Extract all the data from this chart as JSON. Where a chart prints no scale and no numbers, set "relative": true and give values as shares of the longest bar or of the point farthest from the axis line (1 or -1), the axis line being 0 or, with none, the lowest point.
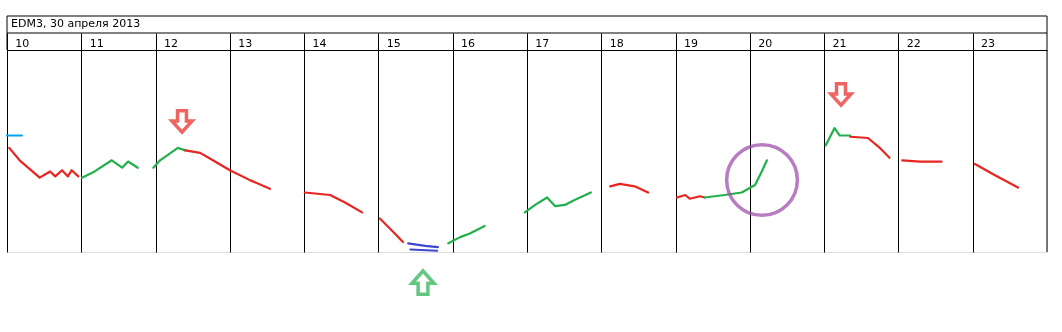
{
  "chart_data": {
    "type": "line",
    "title": "EDM3, 30 апреля 2013",
    "relative": true,
    "grid": "x",
    "line_style": "solid",
    "xlim": [
      10,
      24
    ],
    "xticks": [
      {
        "value": 10,
        "label": null
      },
      {
        "value": 10.2,
        "label": "10"
      },
      {
        "value": 11,
        "label": null
      },
      {
        "value": 11.2,
        "label": "11"
      },
      {
        "value": 12,
        "label": null
      },
      {
        "value": 12.2,
        "label": "12"
      },
      {
        "value": 13,
        "label": null
      },
      {
        "value": 13.2,
        "label": "13"
      },
      {
        "value": 14,
        "label": null
      },
      {
        "value": 14.2,
        "label": "14"
      },
      {
        "value": 15,
        "label": null
      },
      {
        "value": 15.2,
        "label": "15"
      },
      {
        "value": 16,
        "label": null
      },
      {
        "value": 16.2,
        "label": "16"
      },
      {
        "value": 17,
        "label": null
      },
      {
        "value": 17.2,
        "label": "17"
      },
      {
        "value": 18,
        "label": null
      },
      {
        "value": 18.2,
        "label": "18"
      },
      {
        "value": 19,
        "label": null
      },
      {
        "value": 19.2,
        "label": "19"
      },
      {
        "value": 20,
        "label": null
      },
      {
        "value": 20.2,
        "label": "20"
      },
      {
        "value": 21,
        "label": null
      },
      {
        "value": 21.2,
        "label": "21"
      },
      {
        "value": 22,
        "label": null
      },
      {
        "value": 22.2,
        "label": "22"
      },
      {
        "value": 23,
        "label": null
      },
      {
        "value": 23.2,
        "label": "23"
      }
    ],
    "series": [
      {
        "color": "#00a2e8",
        "x": [
          10.0,
          10.2
        ],
        "values": [
          0.94,
          0.94
        ]
      },
      {
        "color": "#e8251f",
        "x": [
          10.03,
          10.17,
          10.44,
          10.58,
          10.65,
          10.74,
          10.82,
          10.87,
          10.96
        ],
        "values": [
          0.84,
          0.74,
          0.6,
          0.65,
          0.61,
          0.66,
          0.61,
          0.66,
          0.61
        ]
      },
      {
        "color": "#22b04b",
        "x": [
          11.01,
          11.18,
          11.41,
          11.55,
          11.63,
          11.76
        ],
        "values": [
          0.6,
          0.65,
          0.74,
          0.68,
          0.73,
          0.68
        ]
      },
      {
        "color": "#22b04b",
        "x": [
          11.97,
          12.06,
          12.3,
          12.4
        ],
        "values": [
          0.68,
          0.74,
          0.84,
          0.82
        ]
      },
      {
        "color": "#e8251f",
        "x": [
          12.4,
          12.6,
          12.8,
          13.0,
          13.27,
          13.54
        ],
        "values": [
          0.82,
          0.8,
          0.73,
          0.66,
          0.58,
          0.51
        ]
      },
      {
        "color": "#e8251f",
        "x": [
          14.01,
          14.35,
          14.55,
          14.78
        ],
        "values": [
          0.48,
          0.46,
          0.4,
          0.32
        ]
      },
      {
        "color": "#e8251f",
        "x": [
          15.02,
          15.22,
          15.33
        ],
        "values": [
          0.27,
          0.15,
          0.08
        ]
      },
      {
        "color": "#3f48cc",
        "x": [
          15.4,
          15.63,
          15.8
        ],
        "values": [
          0.07,
          0.05,
          0.04
        ]
      },
      {
        "color": "#3f48cc",
        "x": [
          15.43,
          15.79
        ],
        "values": [
          0.02,
          0.01
        ]
      },
      {
        "color": "#22b04b",
        "x": [
          15.94,
          16.1,
          16.23,
          16.43
        ],
        "values": [
          0.07,
          0.12,
          0.15,
          0.21
        ]
      },
      {
        "color": "#22b04b",
        "x": [
          16.97,
          17.11,
          17.27,
          17.38,
          17.51,
          17.64,
          17.86
        ],
        "values": [
          0.32,
          0.38,
          0.44,
          0.37,
          0.38,
          0.42,
          0.48
        ]
      },
      {
        "color": "#e8251f",
        "x": [
          18.12,
          18.25,
          18.45,
          18.63
        ],
        "values": [
          0.53,
          0.55,
          0.53,
          0.48
        ]
      },
      {
        "color": "#e8251f",
        "x": [
          19.02,
          19.13,
          19.19,
          19.33,
          19.39
        ],
        "values": [
          0.44,
          0.46,
          0.43,
          0.45,
          0.44
        ]
      },
      {
        "color": "#22b04b",
        "x": [
          19.39,
          19.66,
          19.89,
          20.07,
          20.16,
          20.23
        ],
        "values": [
          0.44,
          0.46,
          0.48,
          0.54,
          0.65,
          0.74
        ]
      },
      {
        "color": "#22b04b",
        "x": [
          21.02,
          21.14,
          21.21,
          21.35
        ],
        "values": [
          0.86,
          1,
          0.94,
          0.94
        ]
      },
      {
        "color": "#e8251f",
        "x": [
          21.35,
          21.59,
          21.75,
          21.88
        ],
        "values": [
          0.93,
          0.92,
          0.84,
          0.76
        ]
      },
      {
        "color": "#e8251f",
        "x": [
          22.05,
          22.29,
          22.58
        ],
        "values": [
          0.74,
          0.73,
          0.73
        ]
      },
      {
        "color": "#e8251f",
        "x": [
          23.03,
          23.3,
          23.61
        ],
        "values": [
          0.71,
          0.62,
          0.52
        ]
      }
    ]
  }
}
